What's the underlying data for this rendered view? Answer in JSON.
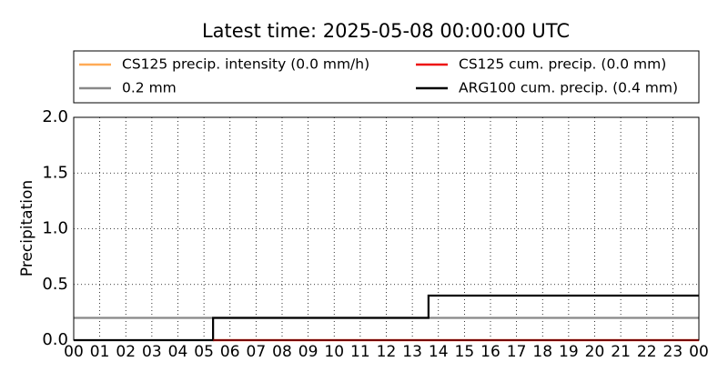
{
  "chart_data": {
    "type": "line",
    "title": "Latest time: 2025-05-08 00:00:00 UTC",
    "ylabel": "Precipitation",
    "xlim": [
      0,
      24
    ],
    "xticks": [
      {
        "value": 0,
        "label": "00"
      },
      {
        "value": 1,
        "label": "01"
      },
      {
        "value": 2,
        "label": "02"
      },
      {
        "value": 3,
        "label": "03"
      },
      {
        "value": 4,
        "label": "04"
      },
      {
        "value": 5,
        "label": "05"
      },
      {
        "value": 6,
        "label": "06"
      },
      {
        "value": 7,
        "label": "07"
      },
      {
        "value": 8,
        "label": "08"
      },
      {
        "value": 9,
        "label": "09"
      },
      {
        "value": 10,
        "label": "10"
      },
      {
        "value": 11,
        "label": "11"
      },
      {
        "value": 12,
        "label": "12"
      },
      {
        "value": 13,
        "label": "13"
      },
      {
        "value": 14,
        "label": "14"
      },
      {
        "value": 15,
        "label": "15"
      },
      {
        "value": 16,
        "label": "16"
      },
      {
        "value": 17,
        "label": "17"
      },
      {
        "value": 18,
        "label": "18"
      },
      {
        "value": 19,
        "label": "19"
      },
      {
        "value": 20,
        "label": "20"
      },
      {
        "value": 21,
        "label": "21"
      },
      {
        "value": 22,
        "label": "22"
      },
      {
        "value": 23,
        "label": "23"
      },
      {
        "value": 24,
        "label": "00"
      }
    ],
    "ylim": [
      0,
      2
    ],
    "yticks": [
      {
        "value": 0,
        "label": "0.0"
      },
      0.5,
      {
        "value": 1,
        "label": "1.0"
      },
      1.5,
      {
        "value": 2,
        "label": "2.0"
      }
    ],
    "grid": true,
    "series": [
      {
        "name": "CS125 precip. intensity (0.0 mm/h)",
        "color": "#ffaa55",
        "x": [
          5.35,
          24
        ],
        "values": [
          0,
          0
        ]
      },
      {
        "name": "0.2 mm",
        "color": "#888888",
        "x": [
          0,
          24
        ],
        "values": [
          0.2,
          0.2
        ]
      },
      {
        "name": "CS125 cum. precip. (0.0 mm)",
        "color": "#ee1111",
        "x": [
          5.35,
          24
        ],
        "values": [
          0,
          0
        ]
      },
      {
        "name": "ARG100 cum. precip. (0.4 mm)",
        "color": "#000000",
        "x": [
          0,
          5.35,
          5.35,
          13.62,
          13.62,
          24
        ],
        "values": [
          0,
          0,
          0.2,
          0.2,
          0.4,
          0.4
        ]
      }
    ]
  }
}
